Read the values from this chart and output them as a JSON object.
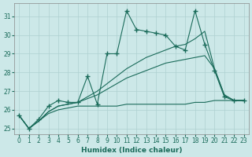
{
  "xlabel": "Humidex (Indice chaleur)",
  "bg_color": "#cce8e8",
  "line_color": "#1a6b5a",
  "grid_color": "#aed0d0",
  "x_values": [
    0,
    1,
    2,
    3,
    4,
    5,
    6,
    7,
    8,
    9,
    10,
    11,
    12,
    13,
    14,
    15,
    16,
    17,
    18,
    19,
    20,
    21,
    22,
    23
  ],
  "series_main": [
    25.7,
    25.0,
    25.5,
    26.2,
    26.5,
    26.4,
    26.4,
    27.8,
    26.3,
    29.0,
    29.0,
    31.3,
    30.3,
    30.2,
    30.1,
    30.0,
    29.4,
    29.2,
    31.3,
    29.5,
    28.1,
    26.7,
    26.5,
    26.5
  ],
  "series_low": [
    25.7,
    25.0,
    25.4,
    25.8,
    26.0,
    26.1,
    26.2,
    26.2,
    26.2,
    26.2,
    26.2,
    26.3,
    26.3,
    26.3,
    26.3,
    26.3,
    26.3,
    26.3,
    26.4,
    26.4,
    26.5,
    26.5,
    26.5,
    26.5
  ],
  "series_mid": [
    25.7,
    25.0,
    25.4,
    25.9,
    26.2,
    26.3,
    26.4,
    26.6,
    26.8,
    27.1,
    27.4,
    27.7,
    27.9,
    28.1,
    28.3,
    28.5,
    28.6,
    28.7,
    28.8,
    28.9,
    28.2,
    26.8,
    26.5,
    26.5
  ],
  "series_high": [
    25.7,
    25.0,
    25.4,
    25.9,
    26.2,
    26.3,
    26.4,
    26.7,
    27.0,
    27.4,
    27.8,
    28.2,
    28.5,
    28.8,
    29.0,
    29.2,
    29.4,
    29.5,
    29.8,
    30.2,
    28.2,
    26.8,
    26.5,
    26.5
  ],
  "xlim": [
    -0.5,
    23.5
  ],
  "ylim": [
    24.7,
    31.7
  ],
  "yticks": [
    25,
    26,
    27,
    28,
    29,
    30,
    31
  ],
  "xticks": [
    0,
    1,
    2,
    3,
    4,
    5,
    6,
    7,
    8,
    9,
    10,
    11,
    12,
    13,
    14,
    15,
    16,
    17,
    18,
    19,
    20,
    21,
    22,
    23
  ]
}
